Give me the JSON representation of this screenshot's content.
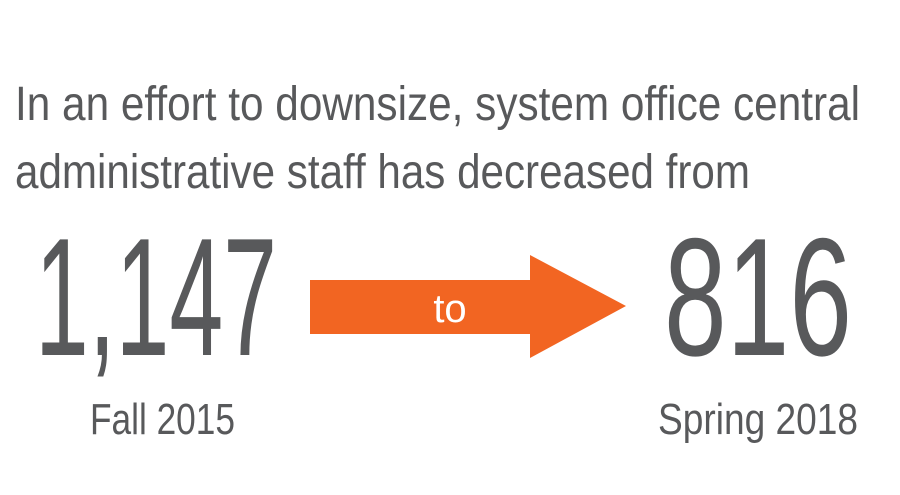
{
  "headline": {
    "lines": [
      "In an effort to downsize, system office central",
      "administrative staff has decreased from"
    ]
  },
  "from": {
    "value": "1,147",
    "label": "Fall 2015"
  },
  "connector": "to",
  "to": {
    "value": "816",
    "label": "Spring 2018"
  }
}
